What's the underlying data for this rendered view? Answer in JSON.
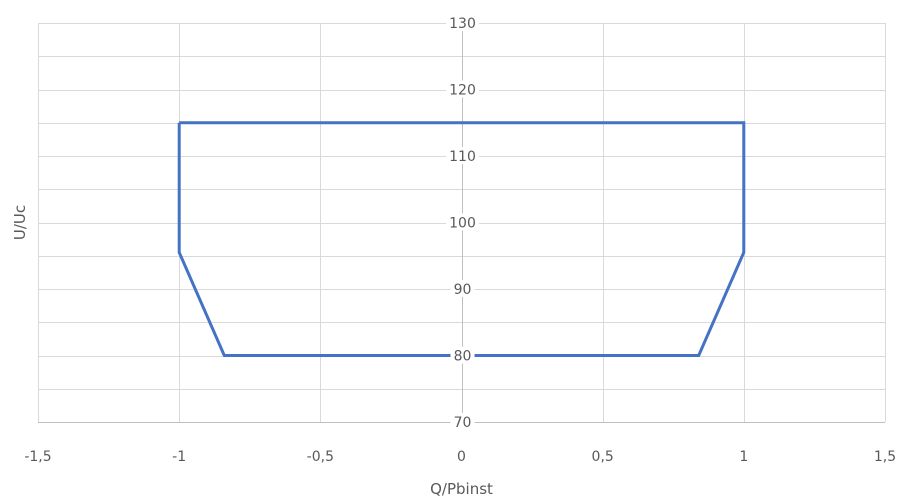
{
  "chart_data": {
    "type": "line",
    "title": "",
    "xlabel": "Q/Pbinst",
    "ylabel": "U/Uc",
    "xlim": [
      -1.5,
      1.5
    ],
    "ylim": [
      70,
      130
    ],
    "x_ticks": [
      -1.5,
      -1,
      -0.5,
      0,
      0.5,
      1,
      1.5
    ],
    "x_tick_labels": [
      "-1,5",
      "-1",
      "-0,5",
      "0",
      "0,5",
      "1",
      "1,5"
    ],
    "y_ticks": [
      70,
      80,
      90,
      100,
      110,
      120,
      130
    ],
    "y_tick_labels": [
      "70",
      "80",
      "90",
      "100",
      "110",
      "120",
      "130"
    ],
    "y_minor_step": 5,
    "grid": true,
    "legend": "none",
    "series": [
      {
        "color": "#4472c4",
        "x": [
          -1,
          1,
          1,
          0.84,
          -0.84,
          -1,
          -1
        ],
        "y": [
          115,
          115,
          95.5,
          80,
          80,
          95.5,
          115
        ]
      }
    ]
  }
}
